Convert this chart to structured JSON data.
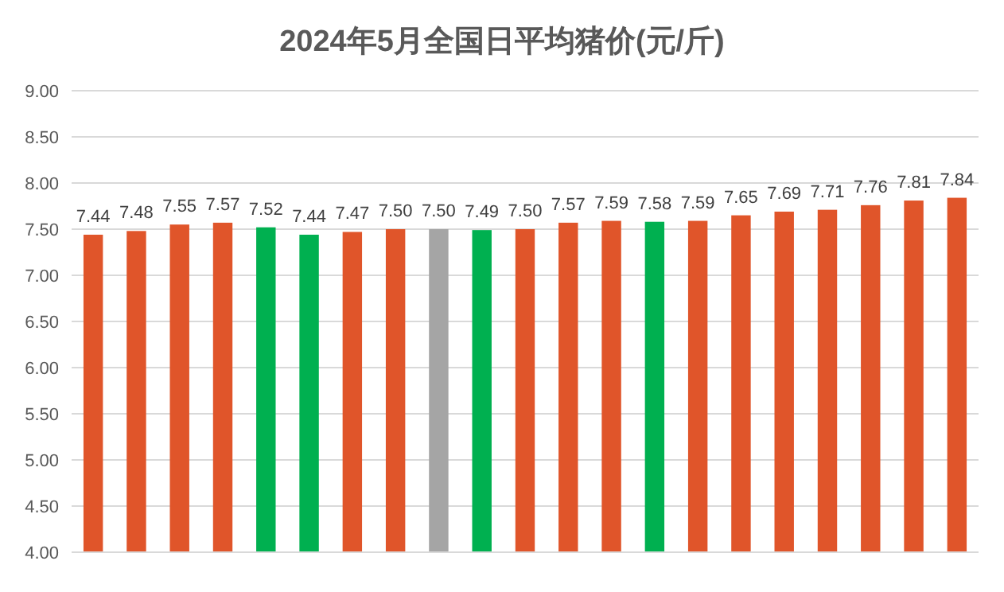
{
  "chart_data": {
    "type": "bar",
    "title": "2024年5月全国日平均猪价(元/斤)",
    "categories": [
      null,
      null,
      null,
      null,
      null,
      null,
      null,
      null,
      null,
      null,
      null,
      null,
      null,
      null,
      null,
      null,
      null,
      null,
      null,
      null,
      null
    ],
    "values": [
      7.44,
      7.48,
      7.55,
      7.57,
      7.52,
      7.44,
      7.47,
      7.5,
      7.5,
      7.49,
      7.5,
      7.57,
      7.59,
      7.58,
      7.59,
      7.65,
      7.69,
      7.71,
      7.76,
      7.81,
      7.84
    ],
    "value_labels": [
      "7.44",
      "7.48",
      "7.55",
      "7.57",
      "7.52",
      "7.44",
      "7.47",
      "7.50",
      "7.50",
      "7.49",
      "7.50",
      "7.57",
      "7.59",
      "7.58",
      "7.59",
      "7.65",
      "7.69",
      "7.71",
      "7.76",
      "7.81",
      "7.84"
    ],
    "colors": [
      "#e0552a",
      "#e0552a",
      "#e0552a",
      "#e0552a",
      "#00b050",
      "#00b050",
      "#e0552a",
      "#e0552a",
      "#a5a5a5",
      "#00b050",
      "#e0552a",
      "#e0552a",
      "#e0552a",
      "#00b050",
      "#e0552a",
      "#e0552a",
      "#e0552a",
      "#e0552a",
      "#e0552a",
      "#e0552a",
      "#e0552a"
    ],
    "ylim": [
      4,
      9
    ],
    "yticks": [
      {
        "value": 4,
        "label": "4.00"
      },
      {
        "value": 4.5,
        "label": "4.50"
      },
      {
        "value": 5,
        "label": "5.00"
      },
      {
        "value": 5.5,
        "label": "5.50"
      },
      {
        "value": 6,
        "label": "6.00"
      },
      {
        "value": 6.5,
        "label": "6.50"
      },
      {
        "value": 7,
        "label": "7.00"
      },
      {
        "value": 7.5,
        "label": "7.50"
      },
      {
        "value": 8,
        "label": "8.00"
      },
      {
        "value": 8.5,
        "label": "8.50"
      },
      {
        "value": 9,
        "label": "9.00"
      }
    ],
    "grid": "y"
  }
}
